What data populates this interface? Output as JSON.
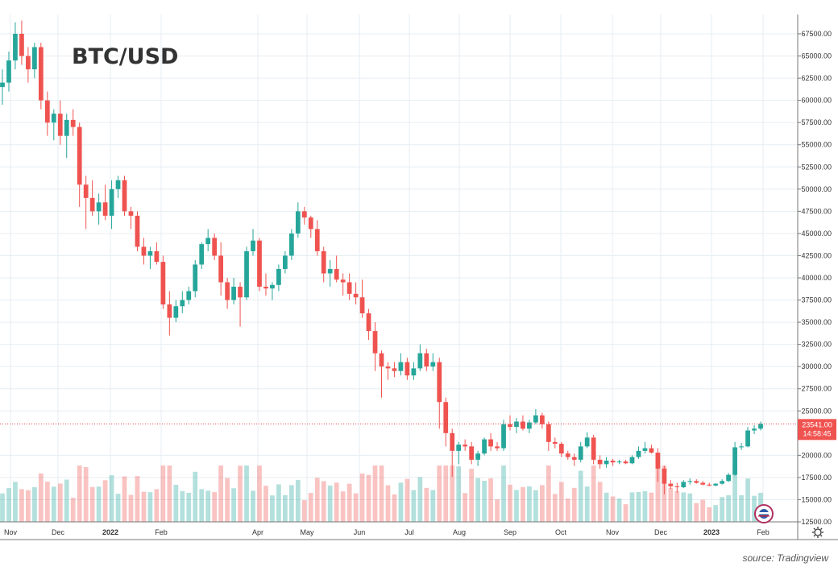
{
  "chart_data": {
    "type": "candlestick",
    "title": "BTC/USD",
    "source": "source: Tradingview",
    "ylim": [
      12500,
      70000
    ],
    "y_ticks": [
      "67500.00",
      "65000.00",
      "62500.00",
      "60000.00",
      "57500.00",
      "55000.00",
      "52500.00",
      "50000.00",
      "47500.00",
      "45000.00",
      "42500.00",
      "40000.00",
      "37500.00",
      "35000.00",
      "32500.00",
      "30000.00",
      "27500.00",
      "25000.00",
      "20000.00",
      "17500.00",
      "15000.00",
      "12500.00"
    ],
    "x_labels": [
      "Nov",
      "Dec",
      "2022",
      "Feb",
      "Apr",
      "May",
      "Jun",
      "Jul",
      "Aug",
      "Sep",
      "Oct",
      "Nov",
      "Dec",
      "2023",
      "Feb"
    ],
    "last_price": {
      "label": "23541.00",
      "countdown": "14:58:45",
      "value": 23541
    },
    "series": [
      {
        "values": [
          [
            61500,
            63500,
            59500,
            62000
          ],
          [
            62000,
            65500,
            61000,
            64500
          ],
          [
            64500,
            68800,
            63500,
            67500
          ],
          [
            67500,
            69000,
            64000,
            65000
          ],
          [
            65000,
            66000,
            62000,
            63500
          ],
          [
            63500,
            66500,
            62500,
            66000
          ],
          [
            66000,
            66500,
            59000,
            60000
          ],
          [
            60000,
            61000,
            56000,
            57500
          ],
          [
            57500,
            59000,
            55500,
            58500
          ],
          [
            58500,
            60000,
            55000,
            56000
          ],
          [
            56000,
            58500,
            53500,
            57800
          ],
          [
            57800,
            59000,
            56000,
            57000
          ],
          [
            57000,
            57500,
            48000,
            50500
          ],
          [
            50500,
            51500,
            45500,
            49000
          ],
          [
            49000,
            51000,
            47000,
            47500
          ],
          [
            47500,
            49500,
            46000,
            48500
          ],
          [
            48500,
            50500,
            46500,
            47000
          ],
          [
            47000,
            51000,
            45500,
            50000
          ],
          [
            50000,
            51500,
            49000,
            51000
          ],
          [
            51000,
            51500,
            47000,
            47500
          ],
          [
            47500,
            48000,
            45500,
            47000
          ],
          [
            47000,
            47500,
            43000,
            43500
          ],
          [
            43500,
            44500,
            41500,
            42500
          ],
          [
            42500,
            43500,
            41000,
            43000
          ],
          [
            43000,
            44000,
            41500,
            41800
          ],
          [
            41800,
            42500,
            36500,
            37000
          ],
          [
            37000,
            38500,
            33500,
            35500
          ],
          [
            35500,
            37500,
            35000,
            36800
          ],
          [
            36800,
            38500,
            36000,
            37500
          ],
          [
            37500,
            39000,
            37000,
            38500
          ],
          [
            38500,
            42000,
            37800,
            41500
          ],
          [
            41500,
            44000,
            41000,
            43800
          ],
          [
            43800,
            45500,
            43000,
            44500
          ],
          [
            44500,
            45000,
            42000,
            42500
          ],
          [
            42500,
            44000,
            38000,
            39500
          ],
          [
            39500,
            40000,
            36500,
            37500
          ],
          [
            37500,
            40000,
            37000,
            39000
          ],
          [
            39000,
            39500,
            34500,
            37800
          ],
          [
            37800,
            43500,
            37500,
            43000
          ],
          [
            43000,
            45500,
            42500,
            44200
          ],
          [
            44200,
            44500,
            38500,
            39000
          ],
          [
            39000,
            40500,
            38000,
            38800
          ],
          [
            38800,
            39500,
            37500,
            39200
          ],
          [
            39200,
            41500,
            38500,
            41000
          ],
          [
            41000,
            43000,
            40500,
            42500
          ],
          [
            42500,
            45500,
            42000,
            45000
          ],
          [
            45000,
            48500,
            44500,
            47500
          ],
          [
            47500,
            48000,
            46000,
            46800
          ],
          [
            46800,
            47000,
            44500,
            45500
          ],
          [
            45500,
            46500,
            42500,
            43000
          ],
          [
            43000,
            43500,
            39500,
            40500
          ],
          [
            40500,
            42000,
            39000,
            41000
          ],
          [
            41000,
            42500,
            39500,
            39800
          ],
          [
            39800,
            40500,
            38000,
            39500
          ],
          [
            39500,
            40500,
            37500,
            38200
          ],
          [
            38200,
            39500,
            37000,
            37800
          ],
          [
            37800,
            39800,
            35500,
            36000
          ],
          [
            36000,
            36500,
            33000,
            34000
          ],
          [
            34000,
            35000,
            29500,
            31500
          ],
          [
            31500,
            31800,
            26500,
            30000
          ],
          [
            30000,
            30500,
            28500,
            29800
          ],
          [
            29800,
            30500,
            28800,
            29500
          ],
          [
            29500,
            31500,
            29000,
            30500
          ],
          [
            30500,
            31000,
            28500,
            29000
          ],
          [
            29000,
            30500,
            28500,
            29800
          ],
          [
            29800,
            32500,
            29500,
            31500
          ],
          [
            31500,
            32000,
            29500,
            30000
          ],
          [
            30000,
            31500,
            29500,
            30500
          ],
          [
            30500,
            31000,
            23000,
            26000
          ],
          [
            26000,
            26500,
            21000,
            22500
          ],
          [
            22500,
            23000,
            17600,
            20500
          ],
          [
            20500,
            21500,
            19000,
            21200
          ],
          [
            21200,
            21800,
            20500,
            21000
          ],
          [
            21000,
            21500,
            19000,
            19500
          ],
          [
            19500,
            20500,
            18800,
            20200
          ],
          [
            20200,
            22000,
            20000,
            21800
          ],
          [
            21800,
            22500,
            20500,
            21000
          ],
          [
            21000,
            21500,
            20500,
            20800
          ],
          [
            20800,
            24000,
            20500,
            23500
          ],
          [
            23500,
            24500,
            22800,
            23200
          ],
          [
            23200,
            24200,
            22500,
            23800
          ],
          [
            23800,
            24500,
            22800,
            23000
          ],
          [
            23000,
            24000,
            22500,
            23700
          ],
          [
            23700,
            25200,
            23500,
            24500
          ],
          [
            24500,
            24800,
            23000,
            23500
          ],
          [
            23500,
            23800,
            20500,
            21500
          ],
          [
            21500,
            22000,
            20800,
            21300
          ],
          [
            21300,
            21500,
            19800,
            20200
          ],
          [
            20200,
            20500,
            19500,
            19800
          ],
          [
            19800,
            20200,
            18800,
            19500
          ],
          [
            19500,
            21500,
            19200,
            21000
          ],
          [
            21000,
            22600,
            20800,
            22000
          ],
          [
            22000,
            22300,
            19000,
            19500
          ],
          [
            19500,
            20000,
            18500,
            19000
          ],
          [
            19000,
            19800,
            18600,
            19400
          ],
          [
            19400,
            19600,
            18800,
            19200
          ],
          [
            19200,
            19500,
            19000,
            19300
          ],
          [
            19300,
            19500,
            19000,
            19100
          ],
          [
            19100,
            20000,
            19000,
            19800
          ],
          [
            19800,
            21000,
            19600,
            20500
          ],
          [
            20500,
            21500,
            20200,
            20800
          ],
          [
            20800,
            21200,
            20200,
            20300
          ],
          [
            20300,
            20800,
            17000,
            18500
          ],
          [
            18500,
            18800,
            15600,
            16800
          ],
          [
            16800,
            17200,
            16200,
            16500
          ],
          [
            16500,
            16900,
            15800,
            16400
          ],
          [
            16400,
            17200,
            16300,
            17000
          ],
          [
            17000,
            17400,
            16700,
            17100
          ],
          [
            17100,
            17300,
            16800,
            16900
          ],
          [
            16900,
            17100,
            16600,
            16700
          ],
          [
            16700,
            16900,
            16500,
            16600
          ],
          [
            16600,
            16850,
            16500,
            16800
          ],
          [
            16800,
            17300,
            16700,
            17100
          ],
          [
            17100,
            18000,
            17000,
            17800
          ],
          [
            17800,
            21500,
            17700,
            20900
          ],
          [
            20900,
            21400,
            20600,
            21000
          ],
          [
            21000,
            23200,
            20900,
            22800
          ],
          [
            22800,
            23400,
            22400,
            23000
          ],
          [
            23000,
            23800,
            22800,
            23541
          ]
        ]
      }
    ]
  }
}
